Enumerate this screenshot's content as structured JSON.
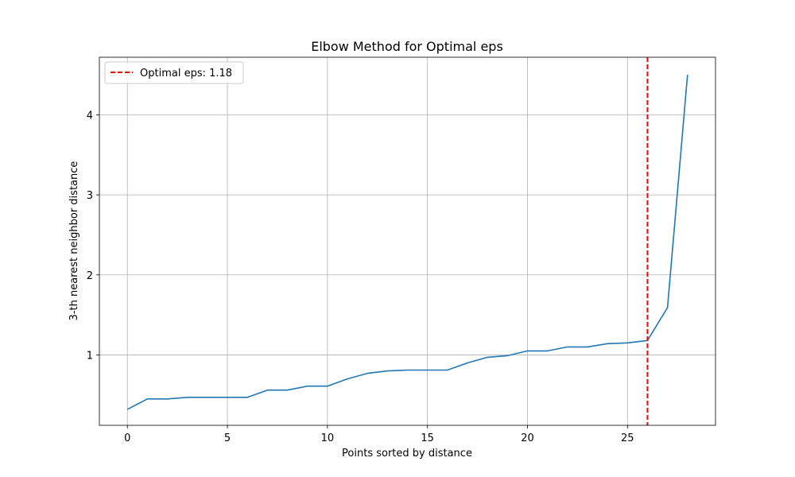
{
  "chart_data": {
    "type": "line",
    "title": "Elbow Method for Optimal eps",
    "xlabel": "Points sorted by distance",
    "ylabel": "3-th nearest neighbor distance",
    "xlim": [
      -1.4,
      29.4
    ],
    "ylim": [
      0.12,
      4.72
    ],
    "xticks": [
      0,
      5,
      10,
      15,
      20,
      25
    ],
    "yticks": [
      1,
      2,
      3,
      4
    ],
    "grid": true,
    "legend_position": "upper-left",
    "series": [
      {
        "color": "#1f77b4",
        "x": [
          0,
          1,
          2,
          3,
          4,
          5,
          6,
          7,
          8,
          9,
          10,
          11,
          12,
          13,
          14,
          15,
          16,
          17,
          18,
          19,
          20,
          21,
          22,
          23,
          24,
          25,
          26,
          27,
          28
        ],
        "y": [
          0.32,
          0.45,
          0.45,
          0.47,
          0.47,
          0.47,
          0.47,
          0.56,
          0.56,
          0.61,
          0.61,
          0.7,
          0.77,
          0.8,
          0.81,
          0.81,
          0.81,
          0.9,
          0.97,
          0.99,
          1.05,
          1.05,
          1.1,
          1.1,
          1.14,
          1.15,
          1.18,
          1.59,
          4.5
        ]
      }
    ],
    "vline": {
      "x": 26,
      "color": "#ff0000",
      "style": "dashed",
      "label": "Optimal eps: 1.18"
    }
  }
}
